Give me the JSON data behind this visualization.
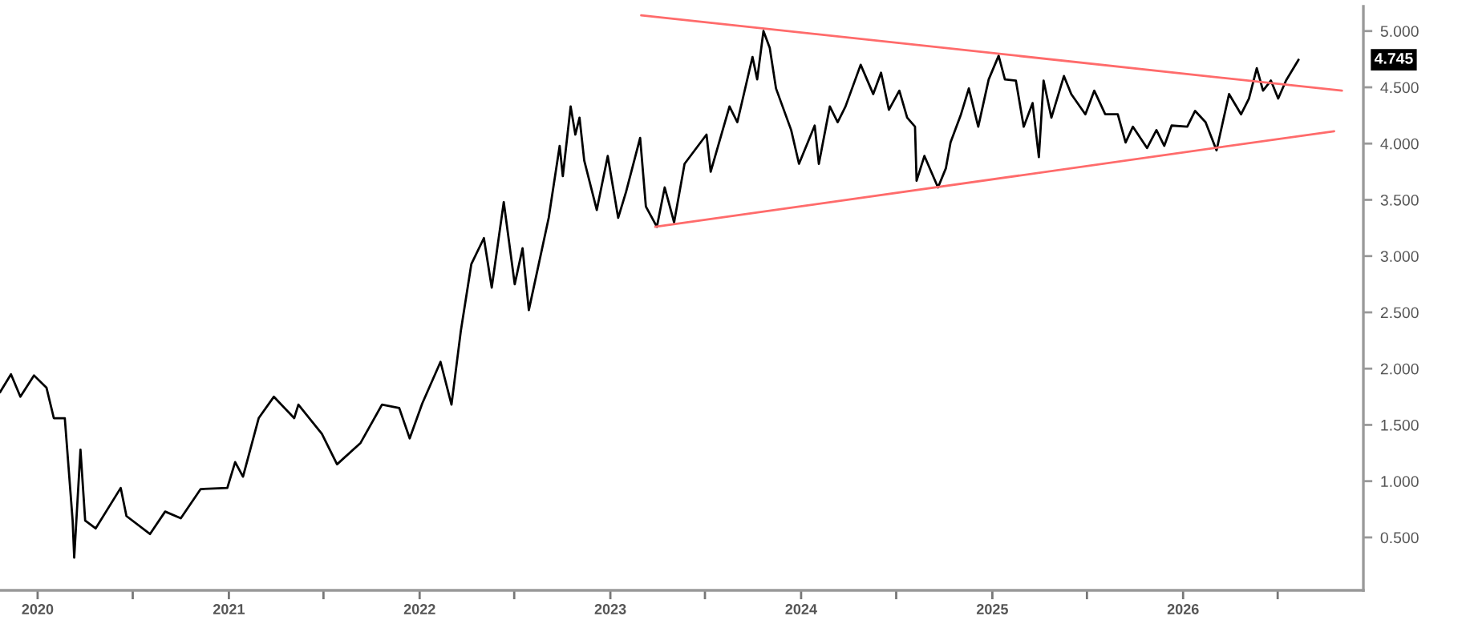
{
  "chart_data": {
    "type": "line",
    "xlim": [
      "2019-10-21",
      "2026-12-12"
    ],
    "ylim": [
      0.03,
      5.22
    ],
    "xticks": [
      {
        "value": "2020-01-01",
        "label": "2020"
      },
      {
        "value": "2020-07-01",
        "label": null
      },
      {
        "value": "2021-01-01",
        "label": "2021"
      },
      {
        "value": "2021-07-01",
        "label": null
      },
      {
        "value": "2022-01-01",
        "label": "2022"
      },
      {
        "value": "2022-07-01",
        "label": null
      },
      {
        "value": "2023-01-01",
        "label": "2023"
      },
      {
        "value": "2023-07-01",
        "label": null
      },
      {
        "value": "2024-01-01",
        "label": "2024"
      },
      {
        "value": "2024-07-01",
        "label": null
      },
      {
        "value": "2025-01-01",
        "label": "2025"
      },
      {
        "value": "2025-07-01",
        "label": null
      },
      {
        "value": "2026-01-01",
        "label": "2026"
      },
      {
        "value": "2026-07-01",
        "label": null
      }
    ],
    "yticks": [
      {
        "value": 0.5,
        "label": "0.500"
      },
      {
        "value": 1,
        "label": "1.000"
      },
      {
        "value": 1.5,
        "label": "1.500"
      },
      {
        "value": 2,
        "label": "2.000"
      },
      {
        "value": 2.5,
        "label": "2.500"
      },
      {
        "value": 3,
        "label": "3.000"
      },
      {
        "value": 3.5,
        "label": "3.500"
      },
      {
        "value": 4,
        "label": "4.000"
      },
      {
        "value": 4.5,
        "label": "4.500"
      },
      {
        "value": 5,
        "label": "5.000"
      }
    ],
    "grid": false,
    "legend": false,
    "annotations": [
      "4.745"
    ],
    "series": [
      {
        "color": "#000000",
        "x": [
          "2019-10-21",
          "2019-11-11",
          "2019-11-29",
          "2019-12-25",
          "2020-01-18",
          "2020-02-01",
          "2020-02-22",
          "2020-03-08",
          "2020-03-11",
          "2020-03-23",
          "2020-04-01",
          "2020-04-21",
          "2020-06-08",
          "2020-06-19",
          "2020-08-03",
          "2020-09-01",
          "2020-10-01",
          "2020-11-08",
          "2020-12-29",
          "2021-01-13",
          "2021-01-28",
          "2021-02-27",
          "2021-03-28",
          "2021-05-06",
          "2021-05-14",
          "2021-06-28",
          "2021-07-27",
          "2021-09-10",
          "2021-10-21",
          "2021-11-23",
          "2021-12-13",
          "2022-01-06",
          "2022-02-10",
          "2022-03-03",
          "2022-03-21",
          "2022-04-10",
          "2022-05-04",
          "2022-05-19",
          "2022-06-11",
          "2022-07-02",
          "2022-07-17",
          "2022-07-29",
          "2022-09-05",
          "2022-09-26",
          "2022-10-02",
          "2022-10-17",
          "2022-10-26",
          "2022-11-03",
          "2022-11-12",
          "2022-12-06",
          "2022-12-27",
          "2023-01-16",
          "2023-01-31",
          "2023-02-27",
          "2023-03-10",
          "2023-03-31",
          "2023-04-15",
          "2023-05-03",
          "2023-05-23",
          "2023-07-04",
          "2023-07-12",
          "2023-08-17",
          "2023-09-01",
          "2023-09-30",
          "2023-10-09",
          "2023-10-21",
          "2023-11-02",
          "2023-11-14",
          "2023-12-13",
          "2023-12-28",
          "2024-01-27",
          "2024-02-04",
          "2024-02-25",
          "2024-03-11",
          "2024-03-26",
          "2024-04-24",
          "2024-05-18",
          "2024-06-02",
          "2024-06-17",
          "2024-07-07",
          "2024-07-22",
          "2024-08-06",
          "2024-08-09",
          "2024-08-24",
          "2024-09-19",
          "2024-10-04",
          "2024-10-13",
          "2024-11-02",
          "2024-11-17",
          "2024-12-05",
          "2024-12-25",
          "2025-01-13",
          "2025-01-25",
          "2025-02-15",
          "2025-03-02",
          "2025-03-19",
          "2025-03-31",
          "2025-04-09",
          "2025-04-24",
          "2025-05-18",
          "2025-06-01",
          "2025-06-28",
          "2025-07-15",
          "2025-08-05",
          "2025-08-29",
          "2025-09-13",
          "2025-09-27",
          "2025-10-24",
          "2025-11-11",
          "2025-11-26",
          "2025-12-10",
          "2026-01-09",
          "2026-01-24",
          "2026-02-13",
          "2026-03-06",
          "2026-03-30",
          "2026-04-22",
          "2026-05-07",
          "2026-05-22",
          "2026-06-03",
          "2026-06-18",
          "2026-07-02",
          "2026-07-17",
          "2026-08-10"
        ],
        "values": [
          1.79,
          1.95,
          1.75,
          1.94,
          1.83,
          1.56,
          1.56,
          0.65,
          0.32,
          1.28,
          0.65,
          0.58,
          0.94,
          0.69,
          0.53,
          0.73,
          0.67,
          0.93,
          0.94,
          1.17,
          1.04,
          1.56,
          1.75,
          1.56,
          1.68,
          1.42,
          1.15,
          1.34,
          1.68,
          1.65,
          1.38,
          1.69,
          2.06,
          1.68,
          2.34,
          2.93,
          3.16,
          2.72,
          3.48,
          2.75,
          3.07,
          2.52,
          3.34,
          3.98,
          3.71,
          4.33,
          4.08,
          4.23,
          3.85,
          3.41,
          3.89,
          3.34,
          3.57,
          4.05,
          3.44,
          3.26,
          3.61,
          3.3,
          3.82,
          4.08,
          3.75,
          4.33,
          4.19,
          4.77,
          4.57,
          5.0,
          4.85,
          4.49,
          4.12,
          3.82,
          4.16,
          3.82,
          4.33,
          4.19,
          4.33,
          4.7,
          4.44,
          4.63,
          4.3,
          4.47,
          4.23,
          4.15,
          3.67,
          3.89,
          3.61,
          3.78,
          4.01,
          4.26,
          4.49,
          4.15,
          4.57,
          4.78,
          4.57,
          4.56,
          4.15,
          4.36,
          3.88,
          4.56,
          4.23,
          4.6,
          4.44,
          4.26,
          4.47,
          4.26,
          4.26,
          4.01,
          4.15,
          3.96,
          4.12,
          3.98,
          4.16,
          4.15,
          4.29,
          4.19,
          3.94,
          4.44,
          4.26,
          4.4,
          4.67,
          4.47,
          4.56,
          4.4,
          4.56,
          4.745
        ]
      },
      {
        "color": "#ff6b6b",
        "x": [
          "2023-03-01",
          "2026-11-01"
        ],
        "values": [
          5.14,
          4.47
        ]
      },
      {
        "color": "#ff6b6b",
        "x": [
          "2023-03-28",
          "2026-10-17"
        ],
        "values": [
          3.26,
          4.11
        ]
      }
    ]
  }
}
